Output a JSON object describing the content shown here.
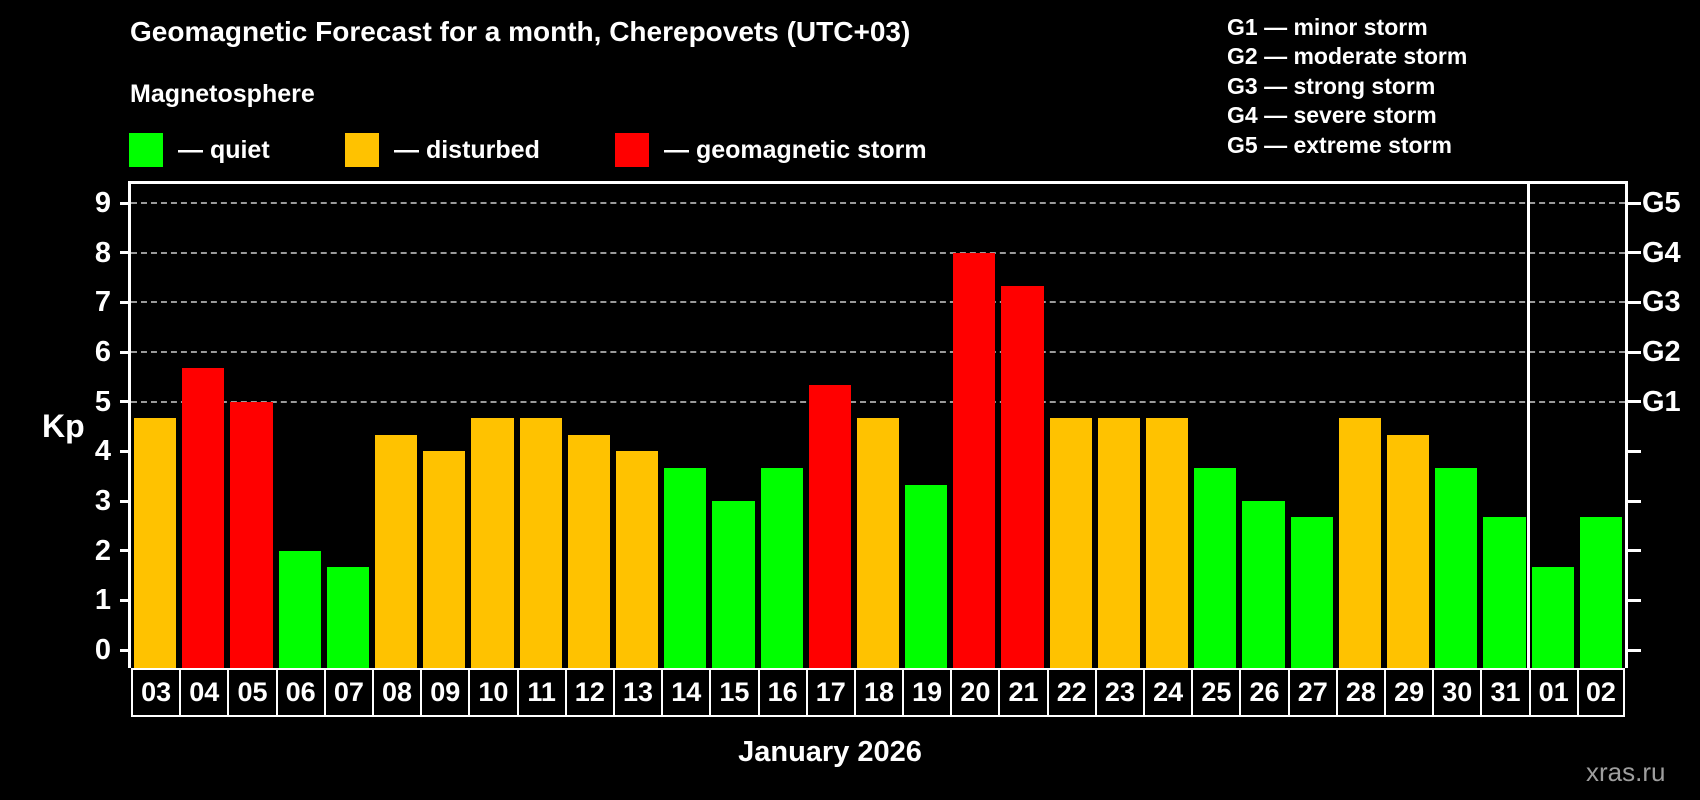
{
  "title": "Geomagnetic Forecast for a month, Cherepovets (UTC+03)",
  "subtitle": "Magnetosphere",
  "legend": {
    "items": [
      {
        "key": "quiet",
        "label": "— quiet",
        "color": "#00ff00"
      },
      {
        "key": "disturbed",
        "label": "— disturbed",
        "color": "#ffc200"
      },
      {
        "key": "storm",
        "label": "— geomagnetic storm",
        "color": "#ff0000"
      }
    ]
  },
  "storm_scale": [
    "G1 — minor storm",
    "G2 — moderate storm",
    "G3 — strong storm",
    "G4 — severe storm",
    "G5 — extreme storm"
  ],
  "chart_data": {
    "type": "bar",
    "title": "Geomagnetic Forecast for a month, Cherepovets (UTC+03)",
    "ylabel": "Kp",
    "xlabel": "January 2026",
    "ylim": [
      0,
      9.4
    ],
    "yticks": [
      0,
      1,
      2,
      3,
      4,
      5,
      6,
      7,
      8,
      9
    ],
    "gridlines_at": [
      5,
      6,
      7,
      8,
      9
    ],
    "grid": "horizontal dashed lines at storm levels only",
    "legend_position": "top",
    "right_axis_labels": [
      {
        "kp": 5,
        "label": "G1"
      },
      {
        "kp": 6,
        "label": "G2"
      },
      {
        "kp": 7,
        "label": "G3"
      },
      {
        "kp": 8,
        "label": "G4"
      },
      {
        "kp": 9,
        "label": "G5"
      }
    ],
    "categories": [
      "03",
      "04",
      "05",
      "06",
      "07",
      "08",
      "09",
      "10",
      "11",
      "12",
      "13",
      "14",
      "15",
      "16",
      "17",
      "18",
      "19",
      "20",
      "21",
      "22",
      "23",
      "24",
      "25",
      "26",
      "27",
      "28",
      "29",
      "30",
      "31",
      "01",
      "02"
    ],
    "values": [
      4.67,
      5.67,
      5,
      2,
      1.67,
      4.33,
      4,
      4.67,
      4.67,
      4.33,
      4,
      3.67,
      3,
      3.67,
      5.33,
      4.67,
      3.33,
      8,
      7.33,
      4.67,
      4.67,
      4.67,
      3.67,
      3,
      2.67,
      4.67,
      4.33,
      3.67,
      2.67,
      1.67,
      2.67
    ],
    "status": [
      "disturbed",
      "storm",
      "storm",
      "quiet",
      "quiet",
      "disturbed",
      "disturbed",
      "disturbed",
      "disturbed",
      "disturbed",
      "disturbed",
      "quiet",
      "quiet",
      "quiet",
      "storm",
      "disturbed",
      "quiet",
      "storm",
      "storm",
      "disturbed",
      "disturbed",
      "disturbed",
      "quiet",
      "quiet",
      "quiet",
      "disturbed",
      "disturbed",
      "quiet",
      "quiet",
      "quiet",
      "quiet"
    ],
    "colors": {
      "quiet": "#00ff00",
      "disturbed": "#ffc200",
      "storm": "#ff0000"
    },
    "separator_after_index": 28
  },
  "footer": {
    "caption": "January 2026",
    "watermark": "xras.ru"
  }
}
